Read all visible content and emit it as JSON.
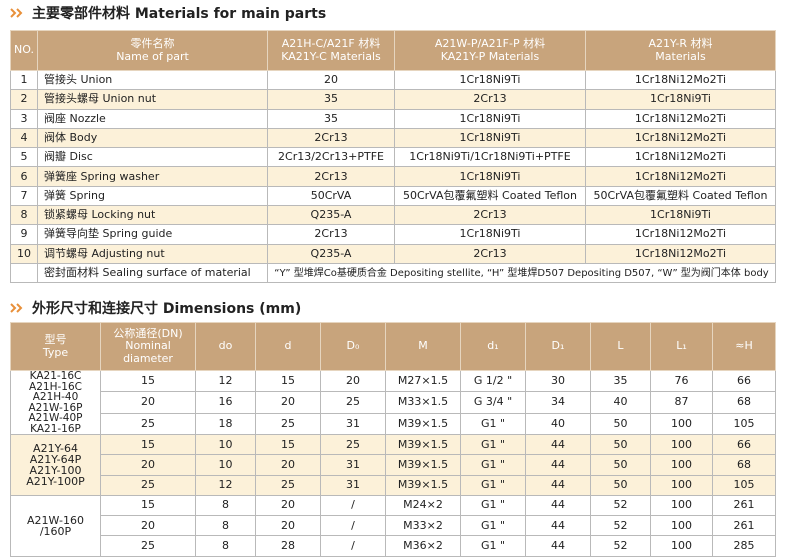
{
  "materials": {
    "title": "主要零部件材料 Materials for main parts",
    "headers": [
      [
        "NO."
      ],
      [
        "零件名称",
        "Name of part"
      ],
      [
        "A21H-C/A21F 材料",
        "KA21Y-C Materials"
      ],
      [
        "A21W-P/A21F-P 材料",
        "KA21Y-P Materials"
      ],
      [
        "A21Y-R 材料",
        "Materials"
      ]
    ],
    "rows": [
      [
        "1",
        "管接头 Union",
        "20",
        "1Cr18Ni9Ti",
        "1Cr18Ni12Mo2Ti"
      ],
      [
        "2",
        "管接头螺母 Union nut",
        "35",
        "2Cr13",
        "1Cr18Ni9Ti"
      ],
      [
        "3",
        "阀座 Nozzle",
        "35",
        "1Cr18Ni9Ti",
        "1Cr18Ni12Mo2Ti"
      ],
      [
        "4",
        "阀体 Body",
        "2Cr13",
        "1Cr18Ni9Ti",
        "1Cr18Ni12Mo2Ti"
      ],
      [
        "5",
        "阀瓣 Disc",
        "2Cr13/2Cr13+PTFE",
        "1Cr18Ni9Ti/1Cr18Ni9Ti+PTFE",
        "1Cr18Ni12Mo2Ti"
      ],
      [
        "6",
        "弹簧座 Spring washer",
        "2Cr13",
        "1Cr18Ni9Ti",
        "1Cr18Ni12Mo2Ti"
      ],
      [
        "7",
        "弹簧 Spring",
        "50CrVA",
        "50CrVA包覆氟塑料 Coated Teflon",
        "50CrVA包覆氟塑料 Coated Teflon"
      ],
      [
        "8",
        "锁紧螺母 Locking nut",
        "Q235-A",
        "2Cr13",
        "1Cr18Ni9Ti"
      ],
      [
        "9",
        "弹簧导向垫 Spring guide",
        "2Cr13",
        "1Cr18Ni9Ti",
        "1Cr18Ni12Mo2Ti"
      ],
      [
        "10",
        "调节螺母 Adjusting nut",
        "Q235-A",
        "2Cr13",
        "1Cr18Ni12Mo2Ti"
      ]
    ],
    "sealing": {
      "label": "密封面材料 Sealing surface of material",
      "text": "“Y” 型堆焊Co基硬质合金 Depositing stellite, “H” 型堆焊D507 Depositing D507, “W” 型为阀门本体 body"
    }
  },
  "dimensions": {
    "title": "外形尺寸和连接尺寸 Dimensions (mm)",
    "headers": [
      [
        "型号",
        "Type"
      ],
      [
        "公称通径(DN)",
        "Nominal",
        "diameter"
      ],
      [
        "do"
      ],
      [
        "d"
      ],
      [
        "D₀"
      ],
      [
        "M"
      ],
      [
        "d₁"
      ],
      [
        "D₁"
      ],
      [
        "L"
      ],
      [
        "L₁"
      ],
      [
        "≈H"
      ]
    ],
    "groups": [
      {
        "type": [
          "KA21-16C",
          "A21H-16C",
          "A21H-40",
          "A21W-16P",
          "A21W-40P",
          "KA21-16P"
        ],
        "rows": [
          [
            "15",
            "12",
            "15",
            "20",
            "M27×1.5",
            "G 1/2 \"",
            "30",
            "35",
            "76",
            "66"
          ],
          [
            "20",
            "16",
            "20",
            "25",
            "M33×1.5",
            "G 3/4 \"",
            "34",
            "40",
            "87",
            "68"
          ],
          [
            "25",
            "18",
            "25",
            "31",
            "M39×1.5",
            "G1 \"",
            "40",
            "50",
            "100",
            "105"
          ]
        ]
      },
      {
        "type": [
          "A21Y-64",
          "A21Y-64P",
          "A21Y-100",
          "A21Y-100P"
        ],
        "rows": [
          [
            "15",
            "10",
            "15",
            "25",
            "M39×1.5",
            "G1 \"",
            "44",
            "50",
            "100",
            "66"
          ],
          [
            "20",
            "10",
            "20",
            "31",
            "M39×1.5",
            "G1 \"",
            "44",
            "50",
            "100",
            "68"
          ],
          [
            "25",
            "12",
            "25",
            "31",
            "M39×1.5",
            "G1 \"",
            "44",
            "50",
            "100",
            "105"
          ]
        ]
      },
      {
        "type": [
          "A21W-160",
          "/160P"
        ],
        "rows": [
          [
            "15",
            "8",
            "20",
            "/",
            "M24×2",
            "G1 \"",
            "44",
            "52",
            "100",
            "261"
          ],
          [
            "20",
            "8",
            "20",
            "/",
            "M33×2",
            "G1 \"",
            "44",
            "52",
            "100",
            "261"
          ],
          [
            "25",
            "8",
            "28",
            "/",
            "M36×2",
            "G1 \"",
            "44",
            "52",
            "100",
            "285"
          ]
        ]
      }
    ]
  }
}
